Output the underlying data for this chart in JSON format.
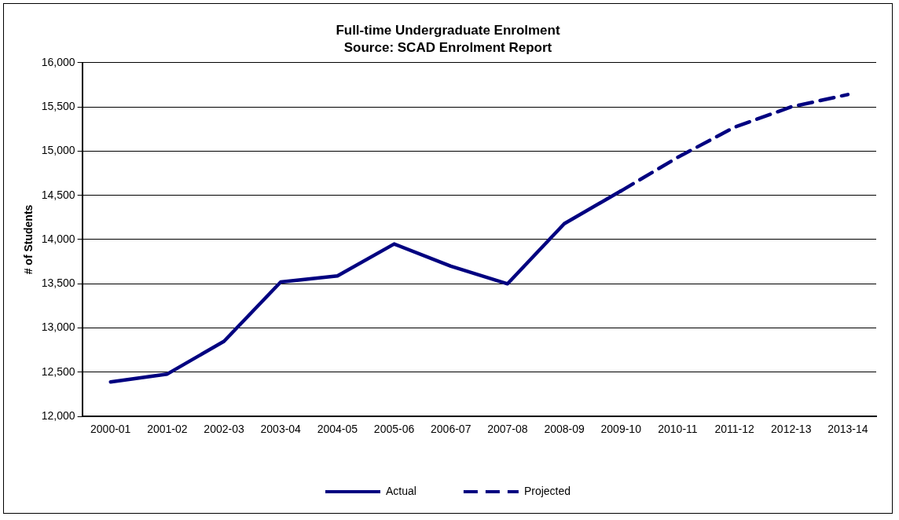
{
  "chart_data": {
    "type": "line",
    "title": "Full-time Undergraduate Enrolment",
    "subtitle": "Source: SCAD Enrolment Report",
    "ylabel": "# of Students",
    "categories": [
      "2000-01",
      "2001-02",
      "2002-03",
      "2003-04",
      "2004-05",
      "2005-06",
      "2006-07",
      "2007-08",
      "2008-09",
      "2009-10",
      "2010-11",
      "2011-12",
      "2012-13",
      "2013-14"
    ],
    "series": [
      {
        "name": "Actual",
        "color": "#000080",
        "line_style": "solid",
        "values": [
          12390,
          12480,
          12850,
          13520,
          13590,
          13950,
          13700,
          13500,
          14180,
          14550,
          null,
          null,
          null,
          null
        ]
      },
      {
        "name": "Projected",
        "color": "#000080",
        "line_style": "dashed",
        "values": [
          null,
          null,
          null,
          null,
          null,
          null,
          null,
          null,
          null,
          14550,
          14930,
          15270,
          15500,
          15640
        ]
      }
    ],
    "ylim": [
      12000,
      16000
    ],
    "yticks": [
      {
        "value": 12000,
        "label": "12,000"
      },
      {
        "value": 12500,
        "label": "12,500"
      },
      {
        "value": 13000,
        "label": "13,000"
      },
      {
        "value": 13500,
        "label": "13,500"
      },
      {
        "value": 14000,
        "label": "14,000"
      },
      {
        "value": 14500,
        "label": "14,500"
      },
      {
        "value": 15000,
        "label": "15,000"
      },
      {
        "value": 15500,
        "label": "15,500"
      },
      {
        "value": 16000,
        "label": "16,000"
      }
    ],
    "grid": "y",
    "legend": "bottom",
    "marker": "none"
  }
}
